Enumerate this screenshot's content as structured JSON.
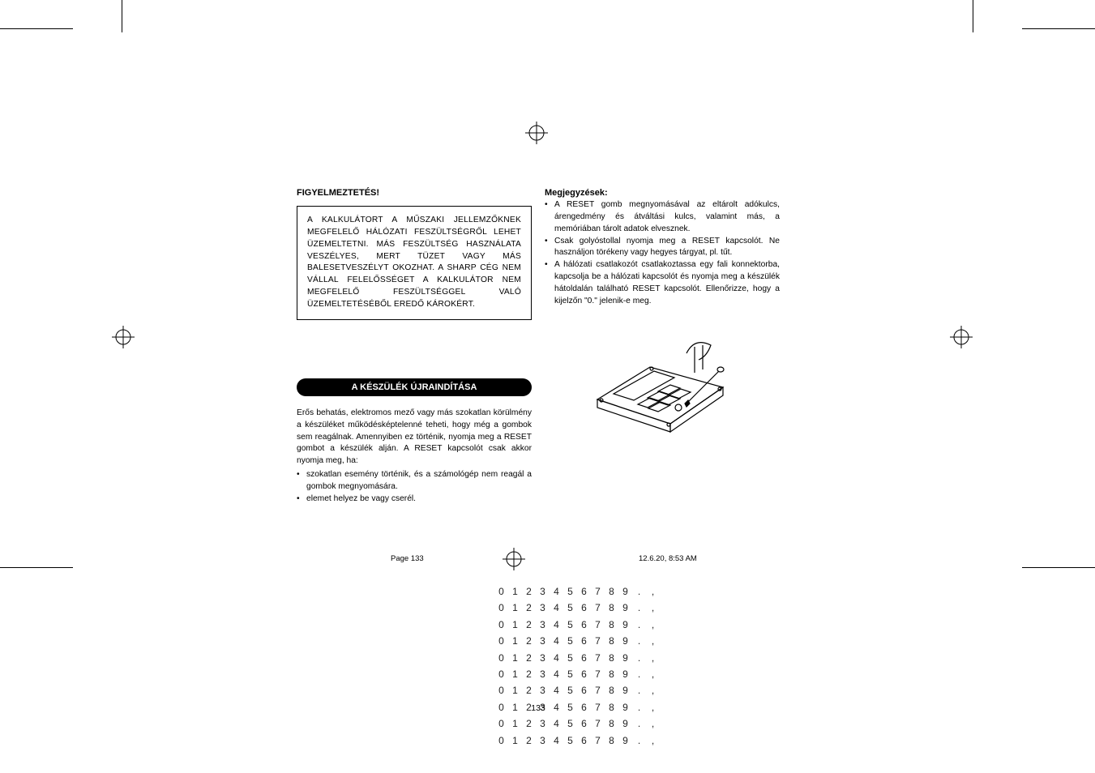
{
  "page": {
    "number": "133",
    "footer_left": "Page 133",
    "footer_right": "12.6.20, 8:53 AM"
  },
  "left_col": {
    "warning_title": "FIGYELMEZTETÉS!",
    "warning_body": "A KALKULÁTORT A MŰSZAKI JELLEMZŐKNEK MEGFELELŐ HÁLÓZATI FESZÜLTSÉGRŐL LEHET ÜZEMELTETNI. MÁS FESZÜLTSÉG HASZNÁLATA VESZÉLYES, MERT TÜZET VAGY MÁS BALESETVESZÉLYT OKOZHAT. A SHARP CÉG NEM VÁLLAL FELELŐSSÉGET A KALKULÁTOR NEM MEGFELELŐ FESZÜLTSÉGGEL VALÓ ÜZEMELTETÉSÉBŐL EREDŐ KÁROKÉRT.",
    "section_title": "A KÉSZÜLÉK ÚJRAINDÍTÁSA",
    "restart_intro": "Erős behatás, elektromos mező vagy más szokatlan körülmény a készüléket működésképtelenné teheti, hogy még a gombok sem reagálnak. Amennyiben ez történik, nyomja meg a RESET gombot a készülék alján. A RESET kapcsolót csak akkor nyomja meg, ha:",
    "restart_bullets": [
      "szokatlan esemény történik, és a számológép nem reagál a gombok megnyomására.",
      "elemet helyez be vagy cserél."
    ]
  },
  "right_col": {
    "notes_title": "Megjegyzések:",
    "notes_bullets": [
      "A RESET gomb megnyomásával az eltárolt adókulcs, árengedmény és átváltási kulcs, valamint más, a memóriában tárolt adatok elvesznek.",
      "Csak golyóstollal nyomja meg a RESET kapcsolót. Ne használjon törékeny vagy hegyes tárgyat, pl. tűt.",
      "A hálózati csatlakozót csatlakoztassa egy fali konnektorba, kapcsolja be a hálózati kapcsolót és nyomja meg a készülék hátoldalán található RESET kapcsolót. Ellenőrizze, hogy a kijelzőn \"0.\" jelenik-e meg."
    ]
  },
  "digit_grid": {
    "row": [
      "0",
      "1",
      "2",
      "3",
      "4",
      "5",
      "6",
      "7",
      "8",
      "9",
      ".",
      ","
    ],
    "rows_count": 10
  },
  "colors": {
    "text": "#000000",
    "background": "#ffffff",
    "pill_bg": "#000000",
    "pill_fg": "#ffffff"
  }
}
